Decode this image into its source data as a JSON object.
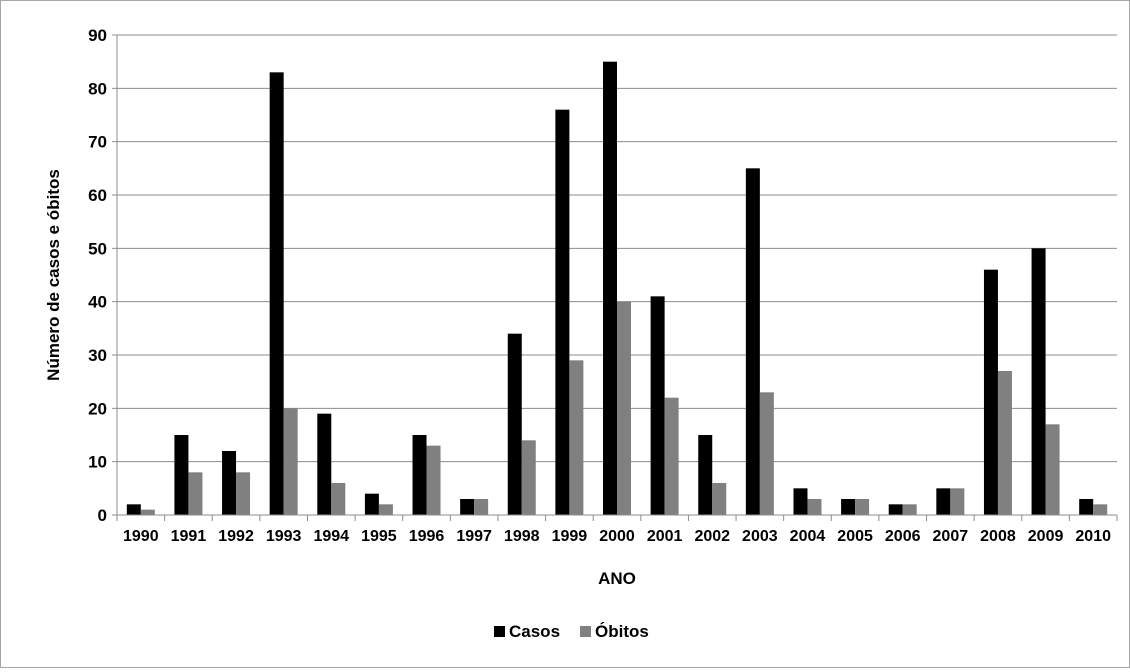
{
  "chart_data": {
    "type": "bar",
    "categories": [
      "1990",
      "1991",
      "1992",
      "1993",
      "1994",
      "1995",
      "1996",
      "1997",
      "1998",
      "1999",
      "2000",
      "2001",
      "2002",
      "2003",
      "2004",
      "2005",
      "2006",
      "2007",
      "2008",
      "2009",
      "2010"
    ],
    "series": [
      {
        "name": "Casos",
        "color": "#000000",
        "values": [
          2,
          15,
          12,
          83,
          19,
          4,
          15,
          3,
          34,
          76,
          85,
          41,
          15,
          65,
          5,
          3,
          2,
          5,
          46,
          50,
          3
        ]
      },
      {
        "name": "Óbitos",
        "color": "#808080",
        "values": [
          1,
          8,
          8,
          20,
          6,
          2,
          13,
          3,
          14,
          29,
          40,
          22,
          6,
          23,
          3,
          3,
          2,
          5,
          27,
          17,
          2
        ]
      }
    ],
    "xlabel": "ANO",
    "ylabel": "Número de casos e óbitos",
    "ylim": [
      0,
      90
    ],
    "yticks": [
      "0",
      "10",
      "20",
      "30",
      "40",
      "50",
      "60",
      "70",
      "80",
      "90"
    ],
    "grid": true,
    "legend_position": "bottom"
  }
}
